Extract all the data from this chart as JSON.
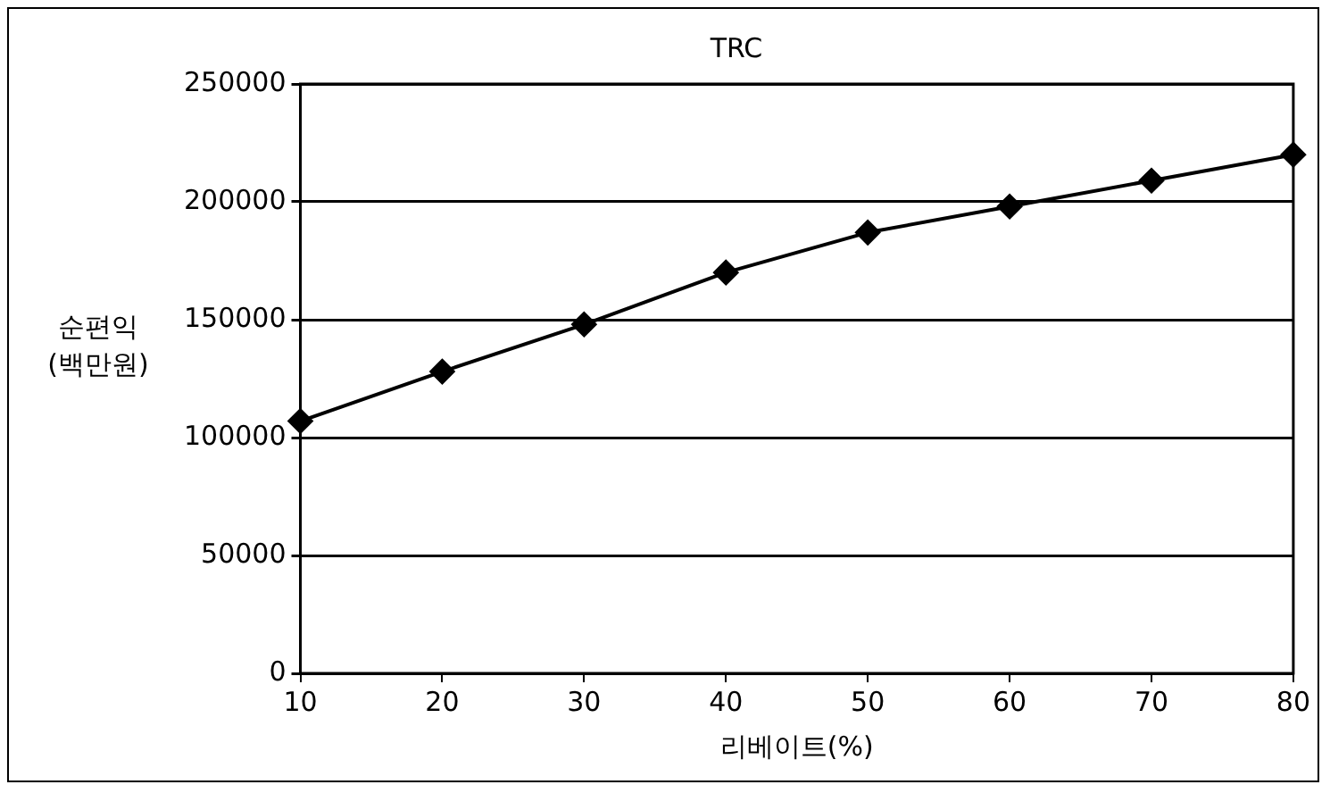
{
  "chart_data": {
    "type": "line",
    "title": "TRC",
    "xlabel": "리베이트(%)",
    "ylabel": "순편익\n(백만원)",
    "x": [
      10,
      20,
      30,
      40,
      50,
      60,
      70,
      80
    ],
    "series": [
      {
        "color": "#000000",
        "values": [
          107000,
          128000,
          148000,
          170000,
          187000,
          198000,
          209000,
          220000
        ]
      }
    ],
    "xlim": [
      10,
      80
    ],
    "xticks": [
      10,
      20,
      30,
      40,
      50,
      60,
      70,
      80
    ],
    "ylim": [
      0,
      250000
    ],
    "yticks": [
      0,
      50000,
      100000,
      150000,
      200000,
      250000
    ],
    "grid": "y",
    "legend": false,
    "marker": "diamond",
    "line_style": "solid"
  }
}
